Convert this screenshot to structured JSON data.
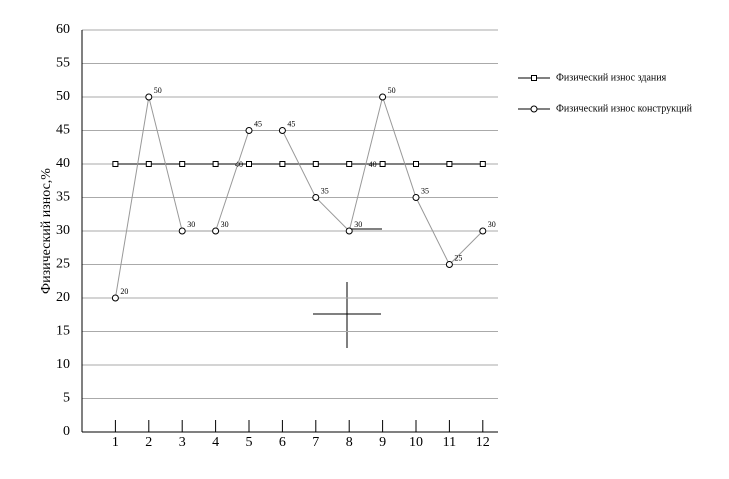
{
  "chart_data": {
    "type": "line",
    "y_label": "Физический износ,%",
    "categories": [
      "1",
      "2",
      "3",
      "4",
      "5",
      "6",
      "7",
      "8",
      "9",
      "10",
      "11",
      "12"
    ],
    "ylim": [
      0,
      60
    ],
    "yticks": [
      0,
      5,
      10,
      15,
      20,
      25,
      30,
      35,
      40,
      45,
      50,
      55,
      60
    ],
    "grid": true,
    "series": [
      {
        "name": "Физический износ здания",
        "color": "#000000",
        "marker": "square",
        "values": [
          40,
          40,
          40,
          40,
          40,
          40,
          40,
          40,
          40,
          40,
          40,
          40
        ],
        "value_labels": [
          null,
          null,
          null,
          null,
          "40",
          null,
          null,
          null,
          "40",
          null,
          null,
          null
        ]
      },
      {
        "name": "Физический износ конструкций",
        "color": "#999999",
        "marker": "circle",
        "values": [
          20,
          50,
          30,
          30,
          45,
          45,
          35,
          30,
          50,
          35,
          25,
          30
        ],
        "data_labels": true
      }
    ]
  }
}
